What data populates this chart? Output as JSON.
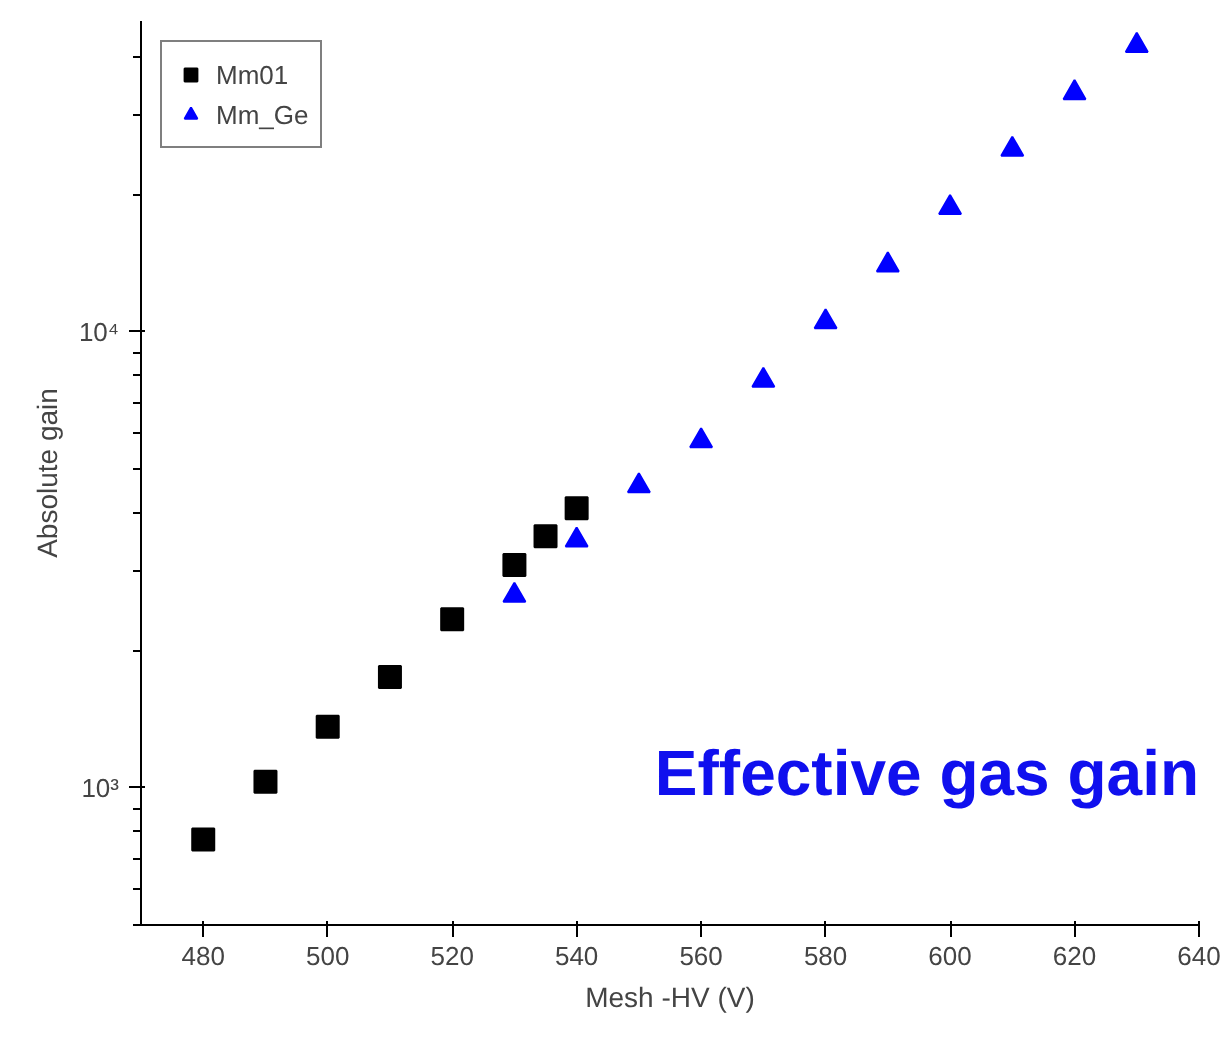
{
  "chart_data": {
    "type": "scatter",
    "xlabel": "Mesh -HV (V)",
    "ylabel": "Absolute gain",
    "log": "y",
    "grid": false,
    "legend": "top left",
    "xlim": [
      470,
      640
    ],
    "xticks": [
      480,
      500,
      520,
      540,
      560,
      580,
      600,
      620,
      640
    ],
    "ylim": [
      500,
      48000
    ],
    "yticks": [
      {
        "value": 1000,
        "label": "10³"
      },
      {
        "value": 10000,
        "label": "10⁴"
      }
    ],
    "annotations": [
      "Effective gas gain"
    ],
    "series": [
      {
        "name": "Mm01",
        "color": "#000000",
        "marker": "square",
        "x": [
          480,
          490,
          500,
          510,
          520,
          530,
          535,
          540
        ],
        "values": [
          770,
          1030,
          1360,
          1750,
          2340,
          3080,
          3560,
          4100
        ]
      },
      {
        "name": "Mm_Ge",
        "color": "#0000ff",
        "marker": "triangle",
        "x": [
          530,
          540,
          550,
          560,
          570,
          580,
          590,
          600,
          610,
          620,
          630
        ],
        "values": [
          2640,
          3490,
          4590,
          5760,
          7820,
          10500,
          14000,
          18700,
          25100,
          33400,
          42400
        ]
      }
    ]
  }
}
